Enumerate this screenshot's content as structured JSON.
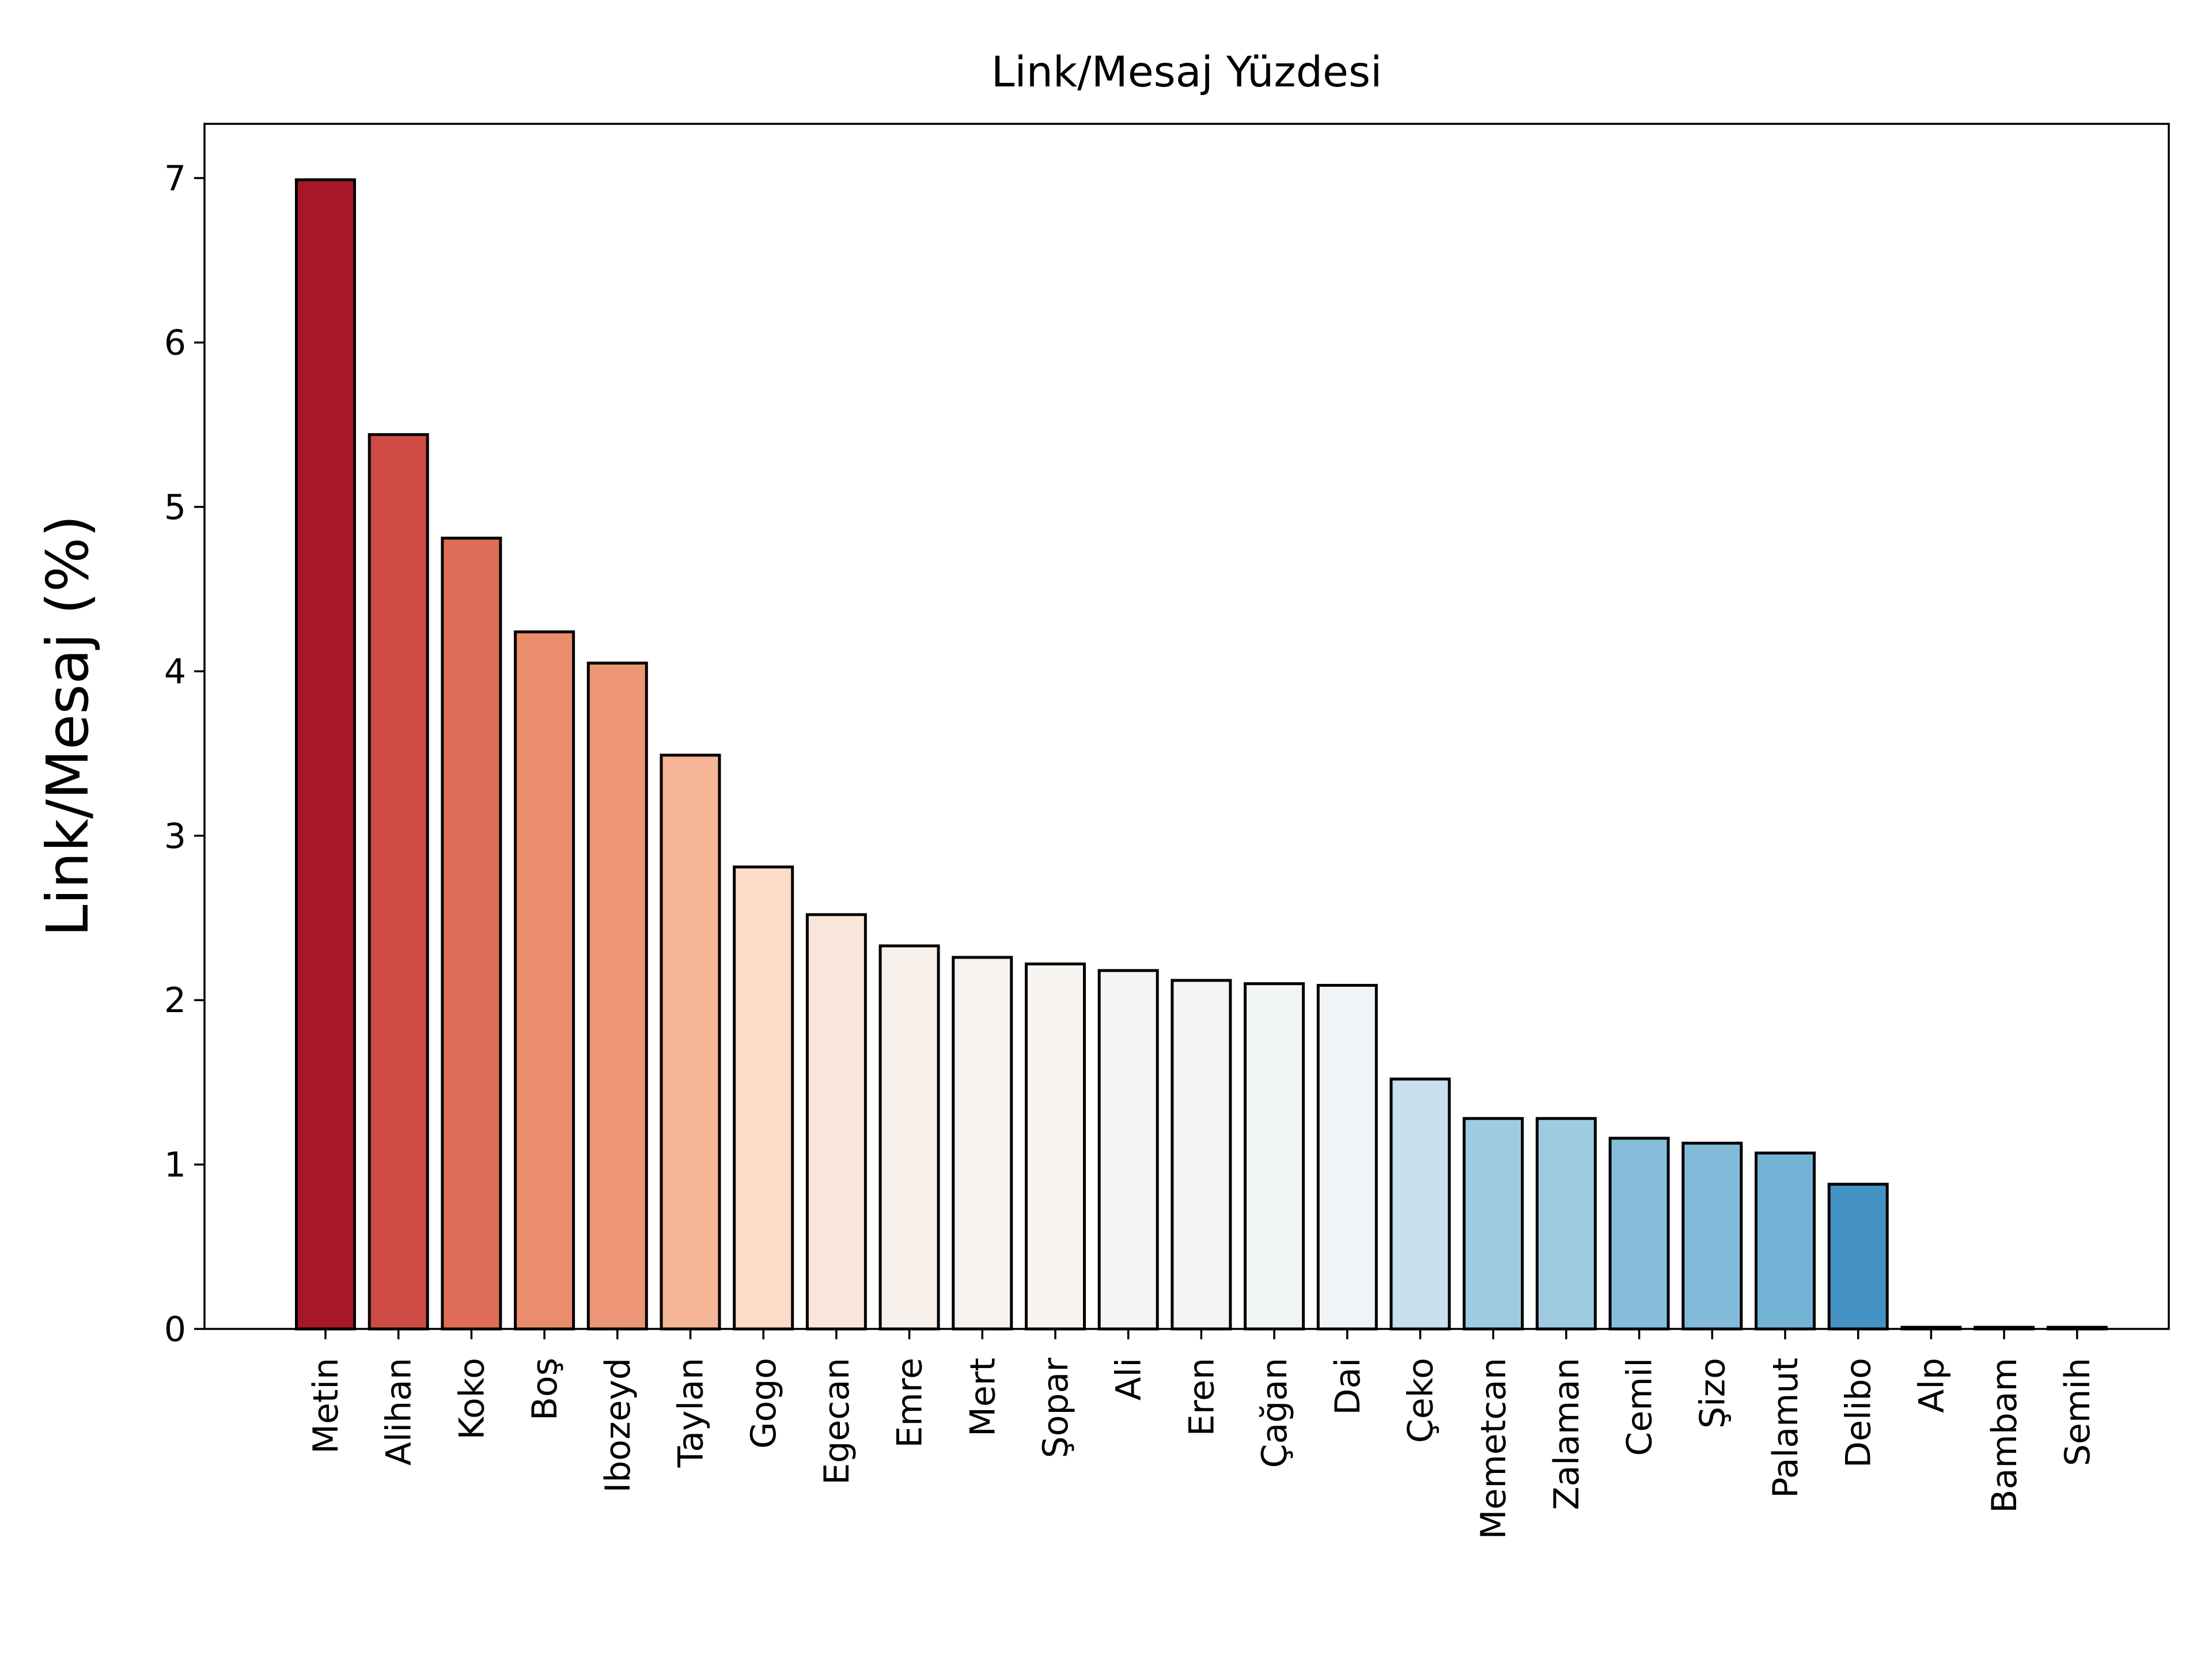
{
  "chart_data": {
    "type": "bar",
    "title": "Link/Mesaj Yüzdesi",
    "xlabel": "",
    "ylabel": "Link/Mesaj (%)",
    "ylim": [
      0,
      7.33
    ],
    "yticks": [
      0,
      1,
      2,
      3,
      4,
      5,
      6,
      7
    ],
    "grid": false,
    "legend": "none",
    "colormap": "diverging red-to-blue",
    "categories": [
      "Metin",
      "Alihan",
      "Koko",
      "Boş",
      "Ibozeyd",
      "Taylan",
      "Gogo",
      "Egecan",
      "Emre",
      "Mert",
      "Şopar",
      "Ali",
      "Eren",
      "Çağan",
      "Dai",
      "Çeko",
      "Memetcan",
      "Zalaman",
      "Cemil",
      "Şizo",
      "Palamut",
      "Delibo",
      "Alp",
      "Bambam",
      "Semih"
    ],
    "values": [
      6.99,
      5.44,
      4.81,
      4.24,
      4.05,
      3.49,
      2.81,
      2.52,
      2.33,
      2.26,
      2.22,
      2.18,
      2.12,
      2.1,
      2.09,
      1.52,
      1.28,
      1.28,
      1.16,
      1.13,
      1.07,
      0.88,
      0.01,
      0.01,
      0.01
    ],
    "colors": [
      "#a61728",
      "#ce4c45",
      "#e06d57",
      "#eb8c6c",
      "#ed9675",
      "#f5b596",
      "#fddcc9",
      "#f9e6da",
      "#f8f0eb",
      "#f7f2ee",
      "#f7f4f1",
      "#f4f5f4",
      "#f3f5f4",
      "#f2f5f5",
      "#f1f4f6",
      "#c8dfed",
      "#9ecbe1",
      "#9ecbe1",
      "#86bddb",
      "#82bad9",
      "#73b2d5",
      "#4593c4",
      "#2d7ab8",
      "#2f74b6",
      "#2e6fb2"
    ]
  }
}
